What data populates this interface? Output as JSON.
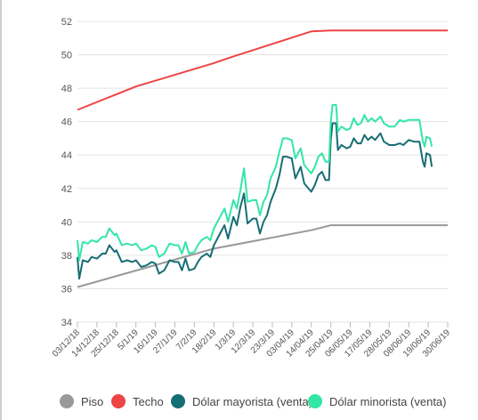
{
  "chart_data": {
    "type": "line",
    "title": "",
    "xlabel": "",
    "ylabel": "",
    "ylim": [
      34,
      52
    ],
    "yticks": [
      34,
      36,
      38,
      40,
      42,
      44,
      46,
      48,
      50,
      52
    ],
    "grid": true,
    "legend_position": "bottom",
    "x_ticks": [
      "03/12/18",
      "14/12/18",
      "25/12/18",
      "5/1/19",
      "16/1/19",
      "27/1/19",
      "7/2/19",
      "18/2/19",
      "1/3/19",
      "12/3/19",
      "23/3/19",
      "03/04/19",
      "14/04/19",
      "25/04/19",
      "06/05/19",
      "17/05/19",
      "28/05/19",
      "08/06/19",
      "19/06/19",
      "30/06/19"
    ],
    "series": [
      {
        "name": "Piso",
        "color": "#999999",
        "points": [
          [
            "03/12/18",
            36.1
          ],
          [
            "18/2/19",
            38.4
          ],
          [
            "14/04/19",
            39.5
          ],
          [
            "25/04/19",
            39.8
          ],
          [
            "30/06/19",
            39.8
          ]
        ]
      },
      {
        "name": "Techo",
        "color": "#ee4444",
        "points": [
          [
            "03/12/18",
            46.7
          ],
          [
            "5/1/19",
            48.1
          ],
          [
            "18/2/19",
            49.5
          ],
          [
            "1/3/19",
            49.9
          ],
          [
            "14/04/19",
            51.4
          ],
          [
            "25/04/19",
            51.45
          ],
          [
            "30/06/19",
            51.45
          ]
        ]
      },
      {
        "name": "Dólar mayorista (venta)",
        "color": "#176d74",
        "points": [
          [
            "03/12/18",
            37.9
          ],
          [
            "04/12/18",
            36.6
          ],
          [
            "06/12/18",
            37.7
          ],
          [
            "09/12/18",
            37.6
          ],
          [
            "11/12/18",
            37.9
          ],
          [
            "14/12/18",
            37.8
          ],
          [
            "17/12/18",
            38.1
          ],
          [
            "19/12/18",
            38.1
          ],
          [
            "21/12/18",
            38.6
          ],
          [
            "24/12/18",
            38.2
          ],
          [
            "25/12/18",
            38.3
          ],
          [
            "28/12/18",
            37.6
          ],
          [
            "31/12/18",
            37.7
          ],
          [
            "03/01/19",
            37.6
          ],
          [
            "5/1/19",
            37.7
          ],
          [
            "08/01/19",
            37.3
          ],
          [
            "11/01/19",
            37.4
          ],
          [
            "14/01/19",
            37.6
          ],
          [
            "16/1/19",
            37.5
          ],
          [
            "18/01/19",
            36.9
          ],
          [
            "21/01/19",
            37.1
          ],
          [
            "24/01/19",
            37.7
          ],
          [
            "27/1/19",
            37.6
          ],
          [
            "29/01/19",
            37.6
          ],
          [
            "31/01/19",
            37.1
          ],
          [
            "02/02/19",
            37.8
          ],
          [
            "04/02/19",
            37.1
          ],
          [
            "07/02/19",
            37.2
          ],
          [
            "09/02/19",
            37.6
          ],
          [
            "11/02/19",
            37.9
          ],
          [
            "14/02/19",
            38.1
          ],
          [
            "16/02/19",
            37.9
          ],
          [
            "18/2/19",
            38.6
          ],
          [
            "21/02/19",
            39.2
          ],
          [
            "24/02/19",
            39.8
          ],
          [
            "26/02/19",
            39.0
          ],
          [
            "1/3/19",
            40.3
          ],
          [
            "03/03/19",
            39.8
          ],
          [
            "05/03/19",
            40.9
          ],
          [
            "07/03/19",
            41.7
          ],
          [
            "09/03/19",
            39.9
          ],
          [
            "12/3/19",
            40.2
          ],
          [
            "14/03/19",
            40.2
          ],
          [
            "16/03/19",
            39.3
          ],
          [
            "18/03/19",
            40.0
          ],
          [
            "20/03/19",
            40.4
          ],
          [
            "22/03/19",
            41.2
          ],
          [
            "25/03/19",
            42.0
          ],
          [
            "27/03/19",
            42.8
          ],
          [
            "29/03/19",
            43.9
          ],
          [
            "31/03/19",
            43.9
          ],
          [
            "03/04/19",
            43.8
          ],
          [
            "05/04/19",
            42.6
          ],
          [
            "08/04/19",
            43.3
          ],
          [
            "10/04/19",
            42.3
          ],
          [
            "14/04/19",
            41.8
          ],
          [
            "16/04/19",
            42.2
          ],
          [
            "18/04/19",
            42.8
          ],
          [
            "20/04/19",
            43.0
          ],
          [
            "22/04/19",
            42.5
          ],
          [
            "24/04/19",
            42.5
          ],
          [
            "25/04/19",
            44.9
          ],
          [
            "26/04/19",
            45.9
          ],
          [
            "28/04/19",
            45.9
          ],
          [
            "29/04/19",
            44.3
          ],
          [
            "01/05/19",
            44.6
          ],
          [
            "04/05/19",
            44.4
          ],
          [
            "06/05/19",
            44.5
          ],
          [
            "08/05/19",
            45.0
          ],
          [
            "10/05/19",
            44.7
          ],
          [
            "12/05/19",
            44.7
          ],
          [
            "14/05/19",
            45.2
          ],
          [
            "16/05/19",
            44.9
          ],
          [
            "18/05/19",
            45.1
          ],
          [
            "20/05/19",
            44.9
          ],
          [
            "23/05/19",
            45.3
          ],
          [
            "25/05/19",
            44.8
          ],
          [
            "28/05/19",
            44.6
          ],
          [
            "31/05/19",
            44.6
          ],
          [
            "03/06/19",
            44.7
          ],
          [
            "05/06/19",
            44.6
          ],
          [
            "08/06/19",
            44.9
          ],
          [
            "11/06/19",
            44.8
          ],
          [
            "14/06/19",
            44.8
          ],
          [
            "16/06/19",
            43.6
          ],
          [
            "17/06/19",
            43.3
          ],
          [
            "18/06/19",
            44.1
          ],
          [
            "20/06/19",
            44.0
          ],
          [
            "21/06/19",
            43.3
          ]
        ]
      },
      {
        "name": "Dólar minorista (venta)",
        "color": "#33e6a6",
        "points": [
          [
            "03/12/18",
            38.9
          ],
          [
            "04/12/18",
            37.7
          ],
          [
            "06/12/18",
            38.8
          ],
          [
            "09/12/18",
            38.7
          ],
          [
            "11/12/18",
            38.9
          ],
          [
            "14/12/18",
            38.8
          ],
          [
            "17/12/18",
            39.1
          ],
          [
            "19/12/18",
            39.1
          ],
          [
            "21/12/18",
            39.6
          ],
          [
            "24/12/18",
            39.2
          ],
          [
            "25/12/18",
            39.3
          ],
          [
            "28/12/18",
            38.6
          ],
          [
            "31/12/18",
            38.7
          ],
          [
            "03/01/19",
            38.6
          ],
          [
            "5/1/19",
            38.7
          ],
          [
            "08/01/19",
            38.3
          ],
          [
            "11/01/19",
            38.4
          ],
          [
            "14/01/19",
            38.6
          ],
          [
            "16/1/19",
            38.5
          ],
          [
            "18/01/19",
            37.9
          ],
          [
            "21/01/19",
            38.1
          ],
          [
            "24/01/19",
            38.7
          ],
          [
            "27/1/19",
            38.6
          ],
          [
            "29/01/19",
            38.6
          ],
          [
            "31/01/19",
            38.1
          ],
          [
            "02/02/19",
            38.8
          ],
          [
            "04/02/19",
            38.1
          ],
          [
            "07/02/19",
            38.2
          ],
          [
            "09/02/19",
            38.6
          ],
          [
            "11/02/19",
            38.9
          ],
          [
            "14/02/19",
            39.1
          ],
          [
            "16/02/19",
            38.9
          ],
          [
            "18/2/19",
            39.6
          ],
          [
            "21/02/19",
            40.2
          ],
          [
            "24/02/19",
            40.8
          ],
          [
            "26/02/19",
            40.0
          ],
          [
            "1/3/19",
            41.3
          ],
          [
            "03/03/19",
            40.8
          ],
          [
            "05/03/19",
            41.9
          ],
          [
            "07/03/19",
            43.2
          ],
          [
            "09/03/19",
            41.2
          ],
          [
            "12/3/19",
            41.3
          ],
          [
            "14/03/19",
            41.3
          ],
          [
            "16/03/19",
            40.4
          ],
          [
            "18/03/19",
            41.2
          ],
          [
            "20/03/19",
            41.6
          ],
          [
            "22/03/19",
            42.6
          ],
          [
            "25/03/19",
            43.3
          ],
          [
            "27/03/19",
            44.2
          ],
          [
            "29/03/19",
            45.0
          ],
          [
            "31/03/19",
            45.0
          ],
          [
            "03/04/19",
            44.9
          ],
          [
            "05/04/19",
            43.8
          ],
          [
            "08/04/19",
            44.4
          ],
          [
            "10/04/19",
            43.4
          ],
          [
            "14/04/19",
            42.9
          ],
          [
            "16/04/19",
            43.3
          ],
          [
            "18/04/19",
            43.9
          ],
          [
            "20/04/19",
            44.1
          ],
          [
            "22/04/19",
            43.6
          ],
          [
            "24/04/19",
            43.6
          ],
          [
            "25/04/19",
            46.0
          ],
          [
            "26/04/19",
            47.0
          ],
          [
            "28/04/19",
            47.0
          ],
          [
            "29/04/19",
            45.4
          ],
          [
            "01/05/19",
            45.7
          ],
          [
            "04/05/19",
            45.5
          ],
          [
            "06/05/19",
            45.6
          ],
          [
            "08/05/19",
            46.2
          ],
          [
            "10/05/19",
            45.8
          ],
          [
            "12/05/19",
            45.9
          ],
          [
            "14/05/19",
            46.4
          ],
          [
            "16/05/19",
            46.0
          ],
          [
            "18/05/19",
            46.2
          ],
          [
            "20/05/19",
            46.0
          ],
          [
            "23/05/19",
            46.3
          ],
          [
            "25/05/19",
            45.9
          ],
          [
            "28/05/19",
            45.7
          ],
          [
            "31/05/19",
            45.7
          ],
          [
            "03/06/19",
            46.1
          ],
          [
            "05/06/19",
            46.0
          ],
          [
            "08/06/19",
            46.1
          ],
          [
            "11/06/19",
            46.1
          ],
          [
            "14/06/19",
            46.1
          ],
          [
            "16/06/19",
            44.8
          ],
          [
            "17/06/19",
            44.5
          ],
          [
            "18/06/19",
            45.1
          ],
          [
            "20/06/19",
            45.0
          ],
          [
            "21/06/19",
            44.5
          ]
        ]
      }
    ]
  }
}
